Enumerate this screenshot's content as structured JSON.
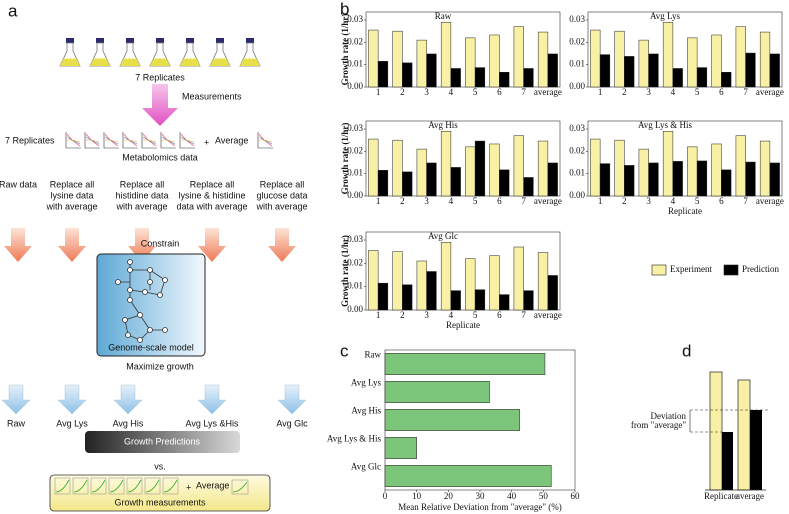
{
  "panel_labels": [
    "a",
    "b",
    "c",
    "d"
  ],
  "diagram": {
    "flask_caption": "7 Replicates",
    "measure_label": "Measurements",
    "replicates_label": "7 Replicates",
    "plus_1": "+",
    "average_label": "Average",
    "metabolomics_label": "Metabolomics data",
    "treatments": [
      [
        "Raw data"
      ],
      [
        "Replace all",
        "lysine data",
        "with average"
      ],
      [
        "Replace all",
        "histidine data",
        "with average"
      ],
      [
        "Replace all",
        "lysine & histidine",
        "data with average"
      ],
      [
        "Replace all",
        "glucose data",
        "with average"
      ]
    ],
    "constrain": "Constrain",
    "model_label": "Genome-scale model",
    "maximize": "Maximize growth",
    "outcomes": [
      "Raw",
      "Avg Lys",
      "Avg His",
      "Avg Lys &His",
      "Avg Glc"
    ],
    "predictions": "Growth Predictions",
    "vs": "vs.",
    "plus_2": "+",
    "measurements_average": "Average",
    "measurements_label": "Growth measurements"
  },
  "chart_data": [
    {
      "type": "bar",
      "title": "Raw",
      "ylabel": "Growth rate (1/hr)",
      "categories": [
        "1",
        "2",
        "3",
        "4",
        "5",
        "6",
        "7",
        "average"
      ],
      "series": [
        {
          "name": "Experiment",
          "color": "#f8f0a4",
          "values": [
            0.0255,
            0.025,
            0.021,
            0.029,
            0.022,
            0.0233,
            0.027,
            0.0246
          ]
        },
        {
          "name": "Prediction",
          "color": "#000000",
          "values": [
            0.0115,
            0.0108,
            0.0148,
            0.0083,
            0.0087,
            0.0066,
            0.0083,
            0.0148
          ]
        }
      ],
      "ylim": [
        0,
        0.03
      ],
      "yticks": [
        {
          "value": 0,
          "label": "0.00"
        },
        0.01,
        0.02,
        0.03
      ]
    },
    {
      "type": "bar",
      "title": "Avg Lys",
      "categories": [
        "1",
        "2",
        "3",
        "4",
        "5",
        "6",
        "7",
        "average"
      ],
      "series": [
        {
          "color": "#f8f0a4",
          "values": [
            0.0255,
            0.025,
            0.021,
            0.029,
            0.022,
            0.0233,
            0.027,
            0.0246
          ]
        },
        {
          "color": "#000000",
          "values": [
            0.0145,
            0.0137,
            0.0148,
            0.0083,
            0.0087,
            0.0066,
            0.0152,
            0.0148
          ]
        }
      ],
      "ylim": [
        0,
        0.03
      ],
      "yticks": [
        {
          "value": 0,
          "label": "0.00"
        },
        0.01,
        0.02,
        0.03
      ]
    },
    {
      "type": "bar",
      "title": "Avg His",
      "ylabel": "Growth rate (1/hr)",
      "categories": [
        "1",
        "2",
        "3",
        "4",
        "5",
        "6",
        "7",
        "average"
      ],
      "series": [
        {
          "color": "#f8f0a4",
          "values": [
            0.0255,
            0.025,
            0.021,
            0.029,
            0.022,
            0.0233,
            0.027,
            0.0246
          ]
        },
        {
          "color": "#000000",
          "values": [
            0.0115,
            0.0108,
            0.0148,
            0.0128,
            0.0246,
            0.0117,
            0.0083,
            0.0148
          ]
        }
      ],
      "ylim": [
        0,
        0.03
      ],
      "yticks": [
        {
          "value": 0,
          "label": "0.00"
        },
        0.01,
        0.02,
        0.03
      ]
    },
    {
      "type": "bar",
      "title": "Avg Lys & His",
      "xlabel": "Replicate",
      "categories": [
        "1",
        "2",
        "3",
        "4",
        "5",
        "6",
        "7",
        "average"
      ],
      "series": [
        {
          "color": "#f8f0a4",
          "values": [
            0.0255,
            0.025,
            0.021,
            0.029,
            0.022,
            0.0233,
            0.027,
            0.0246
          ]
        },
        {
          "color": "#000000",
          "values": [
            0.0145,
            0.0137,
            0.0148,
            0.0155,
            0.0157,
            0.0117,
            0.0152,
            0.0148
          ]
        }
      ],
      "ylim": [
        0,
        0.03
      ],
      "yticks": [
        {
          "value": 0,
          "label": "0.00"
        },
        0.01,
        0.02,
        0.03
      ]
    },
    {
      "type": "bar",
      "title": "Avg Glc",
      "ylabel": "Growth rate (1/hr)",
      "xlabel": "Replicate",
      "categories": [
        "1",
        "2",
        "3",
        "4",
        "5",
        "6",
        "7",
        "average"
      ],
      "series": [
        {
          "color": "#f8f0a4",
          "values": [
            0.0255,
            0.025,
            0.021,
            0.029,
            0.022,
            0.0233,
            0.027,
            0.0246
          ]
        },
        {
          "color": "#000000",
          "values": [
            0.0115,
            0.0108,
            0.0165,
            0.0083,
            0.0087,
            0.0066,
            0.0083,
            0.0148
          ]
        }
      ],
      "ylim": [
        0,
        0.03
      ],
      "yticks": [
        {
          "value": 0,
          "label": "0.00"
        },
        0.01,
        0.02,
        0.03
      ]
    },
    {
      "type": "hbar",
      "xlabel": "Mean Relative Deviation from \"average\" (%)",
      "categories": [
        "Raw",
        "Avg Lys",
        "Avg His",
        "Avg Lys & His",
        "Avg Glc"
      ],
      "values": [
        50.5,
        33,
        42.5,
        10,
        52.5
      ],
      "color": "#7cc67c",
      "xlim": [
        0,
        60
      ],
      "xticks": [
        0,
        10,
        20,
        30,
        40,
        50,
        60
      ]
    }
  ],
  "schematic": {
    "deviation_label": [
      "Deviation",
      "from \"average\""
    ],
    "categories": [
      "Replicate",
      "average"
    ]
  }
}
